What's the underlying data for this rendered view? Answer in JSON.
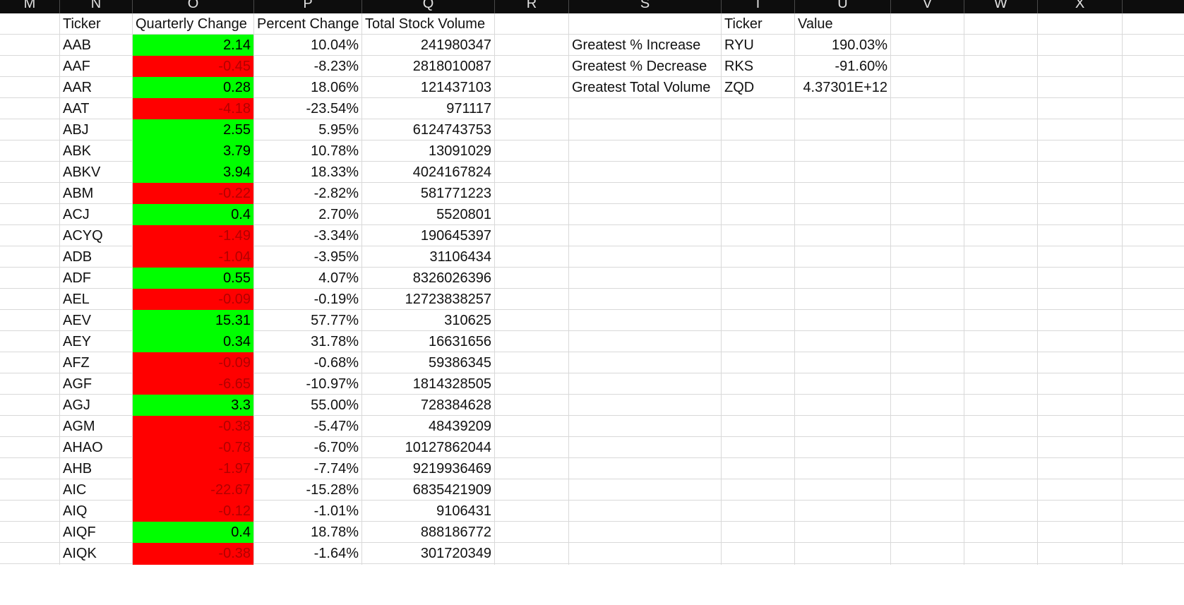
{
  "columns": [
    "M",
    "N",
    "O",
    "P",
    "Q",
    "R",
    "S",
    "T",
    "U",
    "V",
    "W",
    "X"
  ],
  "colors": {
    "positive_fill": "#00ff00",
    "negative_fill": "#ff0000",
    "negative_text": "#b30000",
    "header_bar": "#0d0d0d"
  },
  "table": {
    "headers": [
      "Ticker",
      "Quarterly Change",
      "Percent Change",
      "Total Stock Volume"
    ],
    "rows": [
      {
        "ticker": "AAB",
        "change": "2.14",
        "sign": "pos",
        "percent": "10.04%",
        "volume": "241980347"
      },
      {
        "ticker": "AAF",
        "change": "-0.45",
        "sign": "neg",
        "percent": "-8.23%",
        "volume": "2818010087"
      },
      {
        "ticker": "AAR",
        "change": "0.28",
        "sign": "pos",
        "percent": "18.06%",
        "volume": "121437103"
      },
      {
        "ticker": "AAT",
        "change": "-4.18",
        "sign": "neg",
        "percent": "-23.54%",
        "volume": "971117"
      },
      {
        "ticker": "ABJ",
        "change": "2.55",
        "sign": "pos",
        "percent": "5.95%",
        "volume": "6124743753"
      },
      {
        "ticker": "ABK",
        "change": "3.79",
        "sign": "pos",
        "percent": "10.78%",
        "volume": "13091029"
      },
      {
        "ticker": "ABKV",
        "change": "3.94",
        "sign": "pos",
        "percent": "18.33%",
        "volume": "4024167824"
      },
      {
        "ticker": "ABM",
        "change": "-0.22",
        "sign": "neg",
        "percent": "-2.82%",
        "volume": "581771223"
      },
      {
        "ticker": "ACJ",
        "change": "0.4",
        "sign": "pos",
        "percent": "2.70%",
        "volume": "5520801"
      },
      {
        "ticker": "ACYQ",
        "change": "-1.49",
        "sign": "neg",
        "percent": "-3.34%",
        "volume": "190645397"
      },
      {
        "ticker": "ADB",
        "change": "-1.04",
        "sign": "neg",
        "percent": "-3.95%",
        "volume": "31106434"
      },
      {
        "ticker": "ADF",
        "change": "0.55",
        "sign": "pos",
        "percent": "4.07%",
        "volume": "8326026396"
      },
      {
        "ticker": "AEL",
        "change": "-0.09",
        "sign": "neg",
        "percent": "-0.19%",
        "volume": "12723838257"
      },
      {
        "ticker": "AEV",
        "change": "15.31",
        "sign": "pos",
        "percent": "57.77%",
        "volume": "310625"
      },
      {
        "ticker": "AEY",
        "change": "0.34",
        "sign": "pos",
        "percent": "31.78%",
        "volume": "16631656"
      },
      {
        "ticker": "AFZ",
        "change": "-0.09",
        "sign": "neg",
        "percent": "-0.68%",
        "volume": "59386345"
      },
      {
        "ticker": "AGF",
        "change": "-6.65",
        "sign": "neg",
        "percent": "-10.97%",
        "volume": "1814328505"
      },
      {
        "ticker": "AGJ",
        "change": "3.3",
        "sign": "pos",
        "percent": "55.00%",
        "volume": "728384628"
      },
      {
        "ticker": "AGM",
        "change": "-0.38",
        "sign": "neg",
        "percent": "-5.47%",
        "volume": "48439209"
      },
      {
        "ticker": "AHAO",
        "change": "-0.78",
        "sign": "neg",
        "percent": "-6.70%",
        "volume": "10127862044"
      },
      {
        "ticker": "AHB",
        "change": "-1.97",
        "sign": "neg",
        "percent": "-7.74%",
        "volume": "9219936469"
      },
      {
        "ticker": "AIC",
        "change": "-22.67",
        "sign": "neg",
        "percent": "-15.28%",
        "volume": "6835421909"
      },
      {
        "ticker": "AIQ",
        "change": "-0.12",
        "sign": "neg",
        "percent": "-1.01%",
        "volume": "9106431"
      },
      {
        "ticker": "AIQF",
        "change": "0.4",
        "sign": "pos",
        "percent": "18.78%",
        "volume": "888186772"
      },
      {
        "ticker": "AIQK",
        "change": "-0.38",
        "sign": "neg",
        "percent": "-1.64%",
        "volume": "301720349"
      }
    ]
  },
  "summary": {
    "headers": {
      "ticker": "Ticker",
      "value": "Value"
    },
    "rows": [
      {
        "label": "Greatest % Increase",
        "ticker": "RYU",
        "value": "190.03%"
      },
      {
        "label": "Greatest % Decrease",
        "ticker": "RKS",
        "value": "-91.60%"
      },
      {
        "label": "Greatest Total Volume",
        "ticker": "ZQD",
        "value": "4.37301E+12"
      }
    ]
  }
}
